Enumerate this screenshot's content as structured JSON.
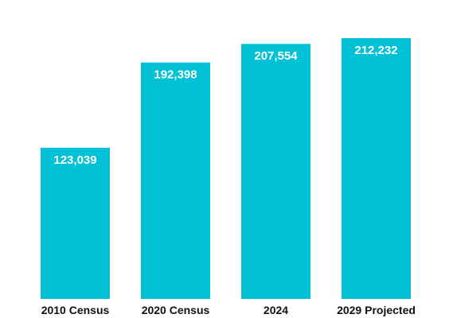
{
  "colors": {
    "bar": "#00C1D5",
    "background": "#FFFFFF",
    "bar_label": "#FFFFFF",
    "category_label": "#111111"
  },
  "chart_data": {
    "type": "bar",
    "categories": [
      "2010 Census",
      "2020 Census",
      "2024",
      "2029 Projected"
    ],
    "values": [
      123039,
      192398,
      207554,
      212232
    ],
    "data_labels": [
      "123,039",
      "192,398",
      "207,554",
      "212,232"
    ],
    "grid": false,
    "legend": "none"
  }
}
